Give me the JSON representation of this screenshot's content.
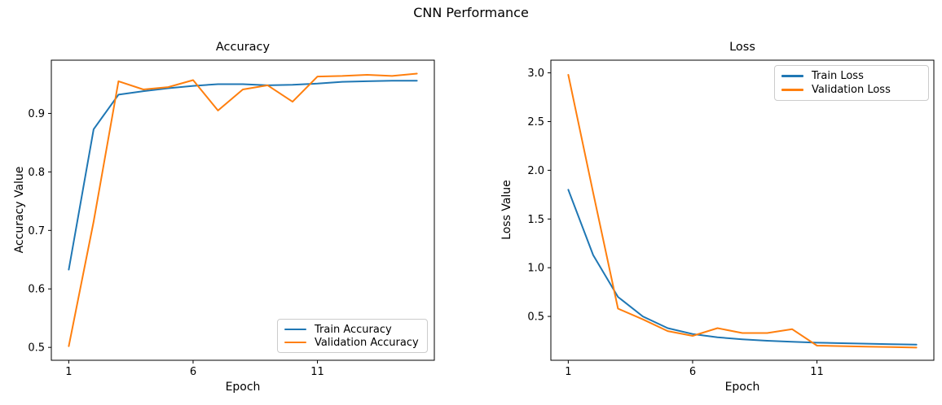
{
  "figure": {
    "suptitle": "CNN Performance",
    "background": "#ffffff"
  },
  "colors": {
    "train": "#1f77b4",
    "validation": "#ff7f0e",
    "spine": "#000000",
    "text": "#000000",
    "legend_border": "#cccccc"
  },
  "chart_data": [
    {
      "type": "line",
      "title": "Accuracy",
      "xlabel": "Epoch",
      "ylabel": "Accuracy Value",
      "x": [
        1,
        2,
        3,
        4,
        5,
        6,
        7,
        8,
        9,
        10,
        11,
        12,
        13,
        14,
        15
      ],
      "series": [
        {
          "name": "Train Accuracy",
          "color": "#1f77b4",
          "values": [
            0.633,
            0.873,
            0.932,
            0.938,
            0.943,
            0.947,
            0.95,
            0.95,
            0.948,
            0.949,
            0.951,
            0.954,
            0.955,
            0.956,
            0.956
          ]
        },
        {
          "name": "Validation Accuracy",
          "color": "#ff7f0e",
          "values": [
            0.502,
            0.715,
            0.955,
            0.941,
            0.945,
            0.957,
            0.905,
            0.941,
            0.948,
            0.92,
            0.963,
            0.964,
            0.966,
            0.964,
            0.968
          ]
        }
      ],
      "xticks": [
        1,
        6,
        11
      ],
      "xtick_labels": [
        "1",
        "6",
        "11"
      ],
      "yticks": [
        0.5,
        0.6,
        0.7,
        0.8,
        0.9
      ],
      "ytick_labels": [
        "0.5",
        "0.6",
        "0.7",
        "0.8",
        "0.9"
      ],
      "xlim": [
        0.3,
        15.7
      ],
      "ylim": [
        0.478,
        0.991
      ],
      "grid": false,
      "legend_position": "lower right"
    },
    {
      "type": "line",
      "title": "Loss",
      "xlabel": "Epoch",
      "ylabel": "Loss Value",
      "x": [
        1,
        2,
        3,
        4,
        5,
        6,
        7,
        8,
        9,
        10,
        11,
        12,
        13,
        14,
        15
      ],
      "series": [
        {
          "name": "Train Loss",
          "color": "#1f77b4",
          "values": [
            1.8,
            1.13,
            0.7,
            0.5,
            0.38,
            0.32,
            0.285,
            0.265,
            0.25,
            0.24,
            0.23,
            0.225,
            0.22,
            0.215,
            0.21
          ]
        },
        {
          "name": "Validation Loss",
          "color": "#ff7f0e",
          "values": [
            2.98,
            1.77,
            0.58,
            0.47,
            0.35,
            0.3,
            0.38,
            0.33,
            0.33,
            0.37,
            0.2,
            0.195,
            0.19,
            0.185,
            0.18
          ]
        }
      ],
      "xticks": [
        1,
        6,
        11
      ],
      "xtick_labels": [
        "1",
        "6",
        "11"
      ],
      "yticks": [
        0.5,
        1.0,
        1.5,
        2.0,
        2.5,
        3.0
      ],
      "ytick_labels": [
        "0.5",
        "1.0",
        "1.5",
        "2.0",
        "2.5",
        "3.0"
      ],
      "xlim": [
        0.3,
        15.7
      ],
      "ylim": [
        0.05,
        3.13
      ],
      "grid": false,
      "legend_position": "upper right"
    }
  ]
}
